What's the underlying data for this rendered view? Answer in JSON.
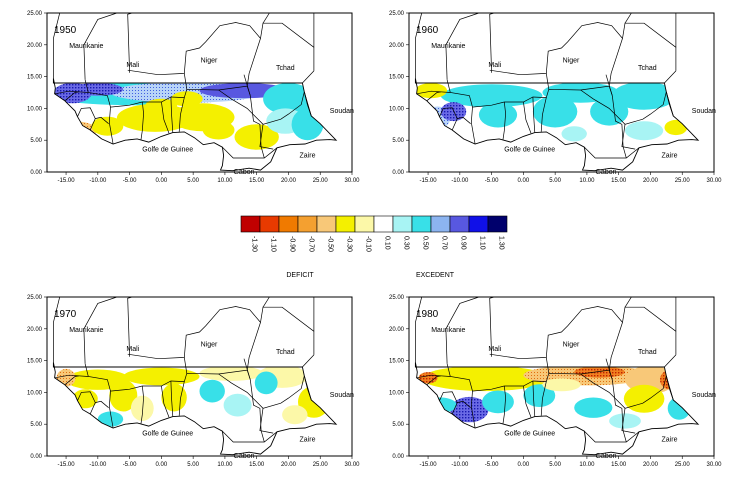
{
  "axes": {
    "y_ticks": [
      "25.00",
      "20.00",
      "15.00",
      "10.00",
      "5.00",
      "0.00"
    ],
    "x_ticks": [
      "-15.00",
      "-10.00",
      "-5.00",
      "0.00",
      "5.00",
      "10.00",
      "15.00",
      "20.00",
      "25.00",
      "30.00"
    ]
  },
  "country_labels": {
    "mauritanie": "Maurikanie",
    "mali": "Mali",
    "niger": "Niger",
    "tchad": "Tchad",
    "soudan": "Soudan",
    "golfe": "Golfe de Guinee",
    "zaire": "Zaire",
    "gabon": "Gabon"
  },
  "panels": [
    {
      "year": "1950"
    },
    {
      "year": "1960"
    },
    {
      "year": "1970"
    },
    {
      "year": "1980"
    }
  ],
  "legend": {
    "deficit_label": "DEFICIT",
    "excedent_label": "EXCEDENT",
    "classes": [
      {
        "value": "-1.30",
        "color": "#c00000"
      },
      {
        "value": "-1.10",
        "color": "#e83a00"
      },
      {
        "value": "-0.90",
        "color": "#f07a00"
      },
      {
        "value": "-0.70",
        "color": "#f4a030"
      },
      {
        "value": "-0.50",
        "color": "#f8c878"
      },
      {
        "value": "-0.30",
        "color": "#f4f000"
      },
      {
        "value": "-0.10",
        "color": "#fcf8a8"
      },
      {
        "value": "0.10",
        "color": "#ffffff"
      },
      {
        "value": "0.30",
        "color": "#a8f4f4"
      },
      {
        "value": "0.50",
        "color": "#38e0e8"
      },
      {
        "value": "0.70",
        "color": "#8cb4f0"
      },
      {
        "value": "0.90",
        "color": "#5858e0"
      },
      {
        "value": "1.10",
        "color": "#1010e8"
      },
      {
        "value": "1.30",
        "color": "#00006c"
      }
    ]
  },
  "colors": {
    "ocean": "#ffffff",
    "border": "#000000"
  }
}
